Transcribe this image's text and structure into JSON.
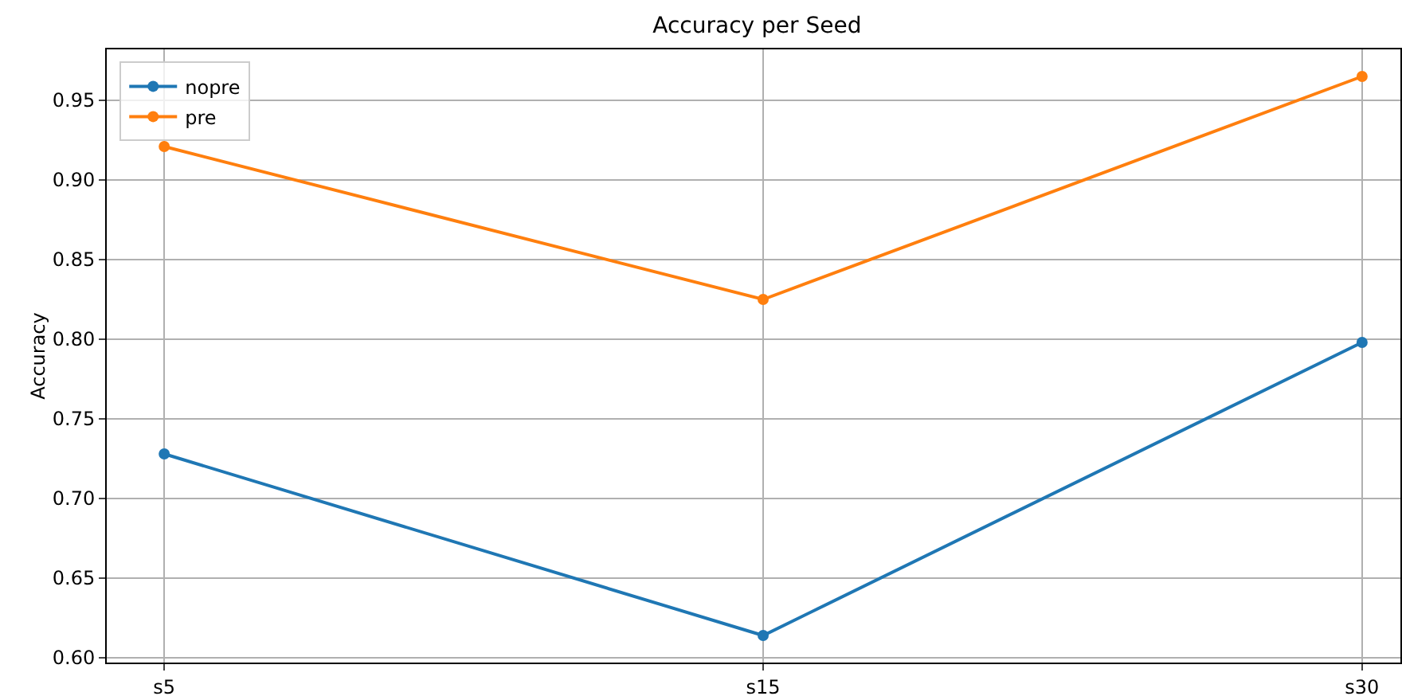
{
  "chart_data": {
    "type": "line",
    "title": "Accuracy per Seed",
    "ylabel": "Accuracy",
    "categories": [
      "s5",
      "s15",
      "s30"
    ],
    "series": [
      {
        "name": "nopre",
        "color": "#1f77b4",
        "values": [
          0.728,
          0.614,
          0.798
        ]
      },
      {
        "name": "pre",
        "color": "#ff7f0e",
        "values": [
          0.921,
          0.825,
          0.965
        ]
      }
    ],
    "ylim": [
      0.597,
      0.982
    ],
    "yticks": [
      {
        "value": 0.6,
        "label": "0.60"
      },
      {
        "value": 0.65,
        "label": "0.65"
      },
      {
        "value": 0.7,
        "label": "0.70"
      },
      {
        "value": 0.75,
        "label": "0.75"
      },
      {
        "value": 0.8,
        "label": "0.80"
      },
      {
        "value": 0.85,
        "label": "0.85"
      },
      {
        "value": 0.9,
        "label": "0.90"
      },
      {
        "value": 0.95,
        "label": "0.95"
      }
    ],
    "grid": true,
    "legend": "top left",
    "marker": "circle",
    "line_style": "solid"
  }
}
